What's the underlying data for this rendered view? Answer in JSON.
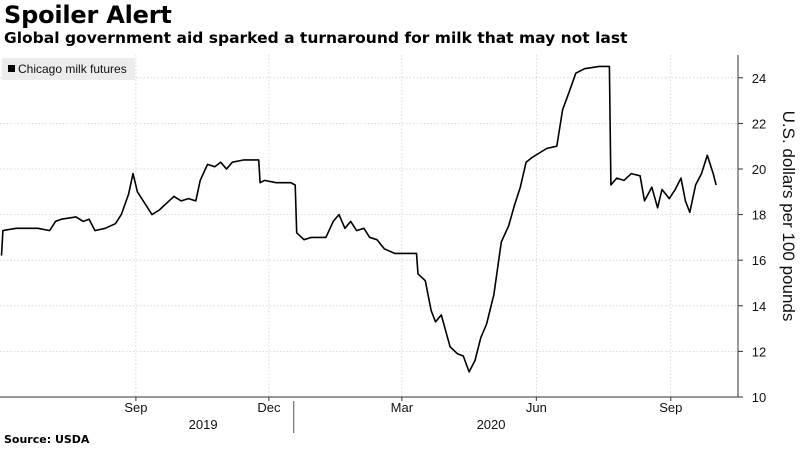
{
  "header": {
    "title": "Spoiler Alert",
    "subtitle": "Global government aid sparked a turnaround for milk that may not last"
  },
  "footer": {
    "source": "Source: USDA"
  },
  "chart_data": {
    "type": "line",
    "title": "Spoiler Alert",
    "subtitle": "Global government aid sparked a turnaround for milk that may not last",
    "ylabel": "U.S. dollars per 100 pounds",
    "xlabel": "",
    "ylim": [
      10,
      25
    ],
    "yticks": [
      10,
      12,
      14,
      16,
      18,
      20,
      22,
      24
    ],
    "y_axis_side": "right",
    "grid": true,
    "legend_position": "top-left",
    "x_ticks": [
      {
        "date": "2019-09-15",
        "label": "Sep"
      },
      {
        "date": "2019-12-15",
        "label": "Dec"
      },
      {
        "date": "2020-03-15",
        "label": "Mar"
      },
      {
        "date": "2020-06-15",
        "label": "Jun"
      },
      {
        "date": "2020-09-15",
        "label": "Sep"
      }
    ],
    "year_labels": [
      {
        "date": "2019-10-31",
        "label": "2019"
      },
      {
        "date": "2020-05-15",
        "label": "2020"
      }
    ],
    "year_divider": "2020-01-01",
    "series": [
      {
        "name": "Chicago milk futures",
        "color": "#000000",
        "points": [
          [
            "2019-06-15",
            16.2
          ],
          [
            "2019-06-16",
            17.3
          ],
          [
            "2019-06-25",
            17.4
          ],
          [
            "2019-07-10",
            17.4
          ],
          [
            "2019-07-18",
            17.3
          ],
          [
            "2019-07-22",
            17.7
          ],
          [
            "2019-07-26",
            17.8
          ],
          [
            "2019-08-05",
            17.9
          ],
          [
            "2019-08-10",
            17.7
          ],
          [
            "2019-08-14",
            17.8
          ],
          [
            "2019-08-18",
            17.3
          ],
          [
            "2019-08-25",
            17.4
          ],
          [
            "2019-09-01",
            17.6
          ],
          [
            "2019-09-05",
            18.0
          ],
          [
            "2019-09-10",
            18.9
          ],
          [
            "2019-09-13",
            19.8
          ],
          [
            "2019-09-16",
            19.0
          ],
          [
            "2019-09-21",
            18.5
          ],
          [
            "2019-09-26",
            18.0
          ],
          [
            "2019-10-01",
            18.2
          ],
          [
            "2019-10-06",
            18.5
          ],
          [
            "2019-10-11",
            18.8
          ],
          [
            "2019-10-16",
            18.6
          ],
          [
            "2019-10-21",
            18.7
          ],
          [
            "2019-10-26",
            18.6
          ],
          [
            "2019-10-29",
            19.5
          ],
          [
            "2019-11-03",
            20.2
          ],
          [
            "2019-11-08",
            20.1
          ],
          [
            "2019-11-12",
            20.3
          ],
          [
            "2019-11-16",
            20.0
          ],
          [
            "2019-11-20",
            20.3
          ],
          [
            "2019-11-28",
            20.4
          ],
          [
            "2019-12-08",
            20.4
          ],
          [
            "2019-12-09",
            19.4
          ],
          [
            "2019-12-12",
            19.5
          ],
          [
            "2019-12-20",
            19.4
          ],
          [
            "2019-12-30",
            19.4
          ],
          [
            "2020-01-02",
            19.3
          ],
          [
            "2020-01-03",
            17.2
          ],
          [
            "2020-01-08",
            16.9
          ],
          [
            "2020-01-13",
            17.0
          ],
          [
            "2020-01-23",
            17.0
          ],
          [
            "2020-01-28",
            17.7
          ],
          [
            "2020-02-01",
            18.0
          ],
          [
            "2020-02-05",
            17.4
          ],
          [
            "2020-02-09",
            17.7
          ],
          [
            "2020-02-13",
            17.3
          ],
          [
            "2020-02-18",
            17.4
          ],
          [
            "2020-02-22",
            17.0
          ],
          [
            "2020-02-27",
            16.9
          ],
          [
            "2020-03-03",
            16.5
          ],
          [
            "2020-03-10",
            16.3
          ],
          [
            "2020-03-20",
            16.3
          ],
          [
            "2020-03-25",
            16.3
          ],
          [
            "2020-03-26",
            15.4
          ],
          [
            "2020-03-31",
            15.1
          ],
          [
            "2020-04-04",
            13.8
          ],
          [
            "2020-04-07",
            13.3
          ],
          [
            "2020-04-11",
            13.6
          ],
          [
            "2020-04-14",
            12.9
          ],
          [
            "2020-04-17",
            12.2
          ],
          [
            "2020-04-22",
            11.9
          ],
          [
            "2020-04-26",
            11.8
          ],
          [
            "2020-04-30",
            11.1
          ],
          [
            "2020-05-04",
            11.6
          ],
          [
            "2020-05-08",
            12.6
          ],
          [
            "2020-05-12",
            13.2
          ],
          [
            "2020-05-17",
            14.5
          ],
          [
            "2020-05-22",
            16.8
          ],
          [
            "2020-05-27",
            17.5
          ],
          [
            "2020-05-31",
            18.4
          ],
          [
            "2020-06-04",
            19.2
          ],
          [
            "2020-06-08",
            20.3
          ],
          [
            "2020-06-12",
            20.5
          ],
          [
            "2020-06-17",
            20.7
          ],
          [
            "2020-06-22",
            20.9
          ],
          [
            "2020-06-29",
            21.0
          ],
          [
            "2020-07-03",
            22.6
          ],
          [
            "2020-07-07",
            23.3
          ],
          [
            "2020-07-12",
            24.2
          ],
          [
            "2020-07-18",
            24.4
          ],
          [
            "2020-07-28",
            24.5
          ],
          [
            "2020-08-04",
            24.5
          ],
          [
            "2020-08-05",
            19.3
          ],
          [
            "2020-08-09",
            19.6
          ],
          [
            "2020-08-14",
            19.5
          ],
          [
            "2020-08-19",
            19.8
          ],
          [
            "2020-08-25",
            19.7
          ],
          [
            "2020-08-28",
            18.6
          ],
          [
            "2020-09-02",
            19.2
          ],
          [
            "2020-09-06",
            18.3
          ],
          [
            "2020-09-09",
            19.1
          ],
          [
            "2020-09-14",
            18.7
          ],
          [
            "2020-09-18",
            19.1
          ],
          [
            "2020-09-22",
            19.6
          ],
          [
            "2020-09-25",
            18.6
          ],
          [
            "2020-09-28",
            18.1
          ],
          [
            "2020-10-02",
            19.3
          ],
          [
            "2020-10-06",
            19.8
          ],
          [
            "2020-10-10",
            20.6
          ],
          [
            "2020-10-14",
            19.8
          ],
          [
            "2020-10-16",
            19.3
          ]
        ]
      }
    ]
  }
}
